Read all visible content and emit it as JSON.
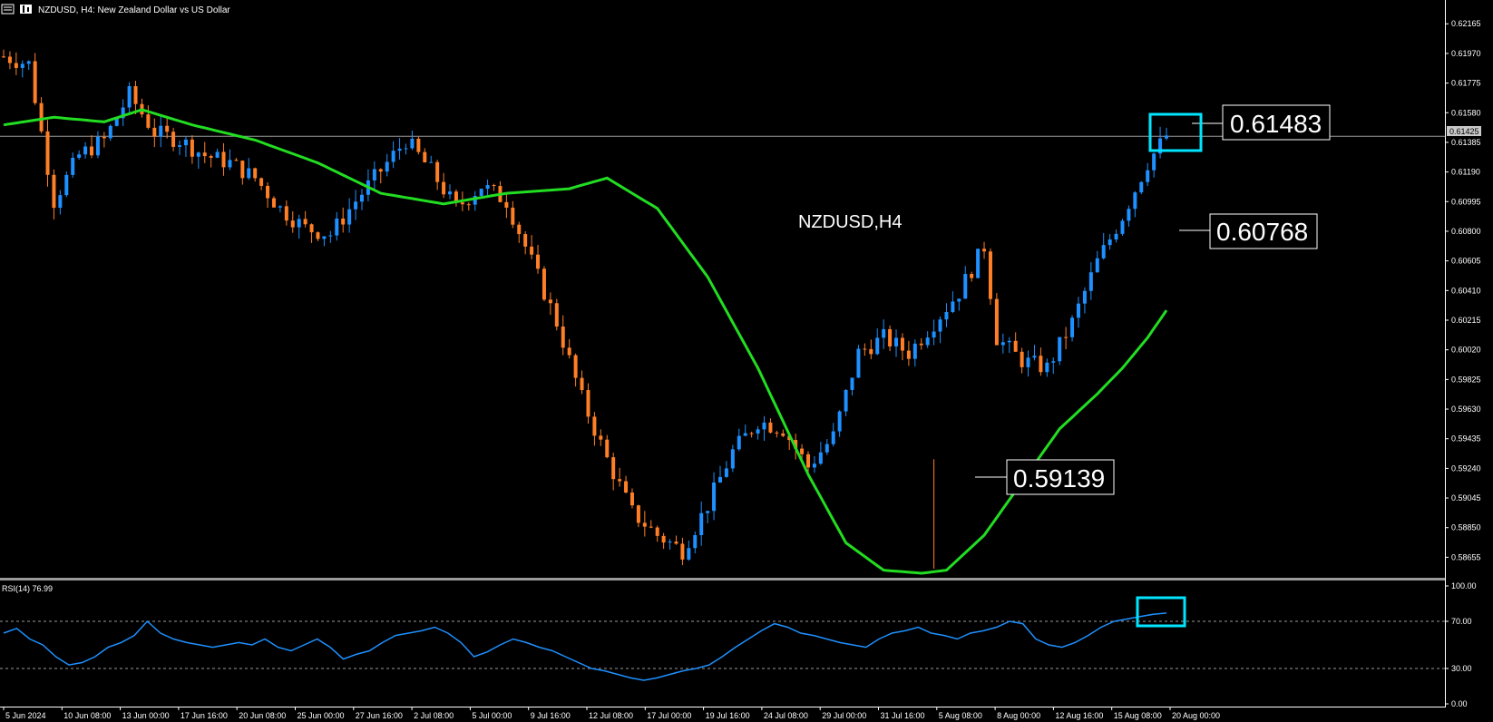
{
  "header": {
    "symbol_text": "NZDUSD, H4:  New Zealand Dollar vs US Dollar"
  },
  "main": {
    "chart_label": "NZDUSD,H4",
    "price_callouts": [
      "0.61483",
      "0.60768",
      "0.59139"
    ],
    "current_price_tag": "0.61425"
  },
  "rsi": {
    "label": "RSI(14) 76.99",
    "levels": [
      "100.00",
      "70.00",
      "30.00",
      "0.00"
    ]
  },
  "colors": {
    "background": "#000000",
    "bull_candle": "#1e90ff",
    "bear_candle": "#ff7f27",
    "moving_average": "#22dd22",
    "rsi_line": "#1e90ff",
    "highlight_box": "#00e5ff"
  },
  "chart_data": [
    {
      "type": "candlestick",
      "title": "NZDUSD, H4:  New Zealand Dollar vs US Dollar",
      "price_axis_ticks": [
        "0.62165",
        "0.61970",
        "0.61775",
        "0.61580",
        "0.61385",
        "0.61190",
        "0.60995",
        "0.60800",
        "0.60605",
        "0.60410",
        "0.60215",
        "0.60020",
        "0.59825",
        "0.59630",
        "0.59435",
        "0.59240",
        "0.59045",
        "0.58850",
        "0.58655"
      ],
      "date_ticks": [
        "5 Jun 2024",
        "10 Jun 08:00",
        "13 Jun 00:00",
        "17 Jun 16:00",
        "20 Jun 08:00",
        "25 Jun 00:00",
        "27 Jun 16:00",
        "2 Jul 08:00",
        "5 Jul 00:00",
        "9 Jul 16:00",
        "12 Jul 08:00",
        "17 Jul 00:00",
        "19 Jul 16:00",
        "24 Jul 08:00",
        "29 Jul 00:00",
        "31 Jul 16:00",
        "5 Aug 08:00",
        "8 Aug 00:00",
        "12 Aug 16:00",
        "15 Aug 08:00",
        "20 Aug 00:00"
      ],
      "ylim": [
        0.5855,
        0.6225
      ],
      "close_path": [
        [
          0,
          0.6195
        ],
        [
          4,
          0.619
        ],
        [
          8,
          0.61
        ],
        [
          12,
          0.613
        ],
        [
          16,
          0.614
        ],
        [
          20,
          0.617
        ],
        [
          24,
          0.6145
        ],
        [
          28,
          0.614
        ],
        [
          32,
          0.613
        ],
        [
          36,
          0.6125
        ],
        [
          40,
          0.6115
        ],
        [
          44,
          0.6095
        ],
        [
          48,
          0.6082
        ],
        [
          52,
          0.6078
        ],
        [
          56,
          0.61
        ],
        [
          60,
          0.612
        ],
        [
          64,
          0.614
        ],
        [
          68,
          0.612
        ],
        [
          72,
          0.6095
        ],
        [
          76,
          0.611
        ],
        [
          80,
          0.61
        ],
        [
          84,
          0.606
        ],
        [
          88,
          0.602
        ],
        [
          92,
          0.597
        ],
        [
          96,
          0.593
        ],
        [
          100,
          0.5895
        ],
        [
          104,
          0.588
        ],
        [
          108,
          0.587
        ],
        [
          112,
          0.59
        ],
        [
          116,
          0.5935
        ],
        [
          120,
          0.5955
        ],
        [
          124,
          0.595
        ],
        [
          128,
          0.5925
        ],
        [
          132,
          0.5945
        ],
        [
          136,
          0.6
        ],
        [
          140,
          0.601
        ],
        [
          144,
          0.6
        ],
        [
          148,
          0.602
        ],
        [
          152,
          0.604
        ],
        [
          156,
          0.607
        ],
        [
          158,
          0.601
        ],
        [
          162,
          0.5995
        ],
        [
          166,
          0.599
        ],
        [
          170,
          0.602
        ],
        [
          174,
          0.606
        ],
        [
          178,
          0.609
        ],
        [
          182,
          0.6125
        ],
        [
          185,
          0.6143
        ]
      ],
      "moving_average_path": [
        [
          0,
          0.615
        ],
        [
          8,
          0.6155
        ],
        [
          16,
          0.6152
        ],
        [
          22,
          0.616
        ],
        [
          30,
          0.615
        ],
        [
          40,
          0.614
        ],
        [
          50,
          0.6125
        ],
        [
          60,
          0.6105
        ],
        [
          70,
          0.6098
        ],
        [
          80,
          0.6105
        ],
        [
          90,
          0.6108
        ],
        [
          96,
          0.6115
        ],
        [
          104,
          0.6095
        ],
        [
          112,
          0.605
        ],
        [
          120,
          0.599
        ],
        [
          128,
          0.592
        ],
        [
          134,
          0.5875
        ],
        [
          140,
          0.5857
        ],
        [
          146,
          0.5855
        ],
        [
          150,
          0.5857
        ],
        [
          156,
          0.588
        ],
        [
          162,
          0.5915
        ],
        [
          168,
          0.595
        ],
        [
          174,
          0.5973
        ],
        [
          178,
          0.599
        ],
        [
          182,
          0.601
        ],
        [
          185,
          0.6028
        ]
      ],
      "annotations": [
        {
          "text": "0.61483",
          "value": 0.61483
        },
        {
          "text": "0.60768",
          "value": 0.60768
        },
        {
          "text": "0.59139",
          "value": 0.59139
        }
      ]
    },
    {
      "type": "line",
      "title": "RSI(14) 76.99",
      "ylim": [
        0,
        100
      ],
      "levels": [
        70,
        30
      ],
      "values": [
        60,
        64,
        55,
        50,
        40,
        33,
        35,
        40,
        48,
        52,
        58,
        70,
        60,
        55,
        52,
        50,
        48,
        50,
        52,
        50,
        55,
        48,
        45,
        50,
        55,
        48,
        38,
        42,
        45,
        52,
        58,
        60,
        62,
        65,
        60,
        52,
        40,
        44,
        50,
        55,
        52,
        48,
        45,
        40,
        35,
        30,
        28,
        25,
        22,
        20,
        22,
        25,
        28,
        30,
        33,
        40,
        48,
        55,
        62,
        68,
        65,
        60,
        58,
        55,
        52,
        50,
        48,
        55,
        60,
        62,
        65,
        60,
        58,
        55,
        60,
        62,
        65,
        70,
        68,
        55,
        50,
        48,
        52,
        58,
        65,
        70,
        72,
        74,
        76,
        77
      ]
    }
  ]
}
